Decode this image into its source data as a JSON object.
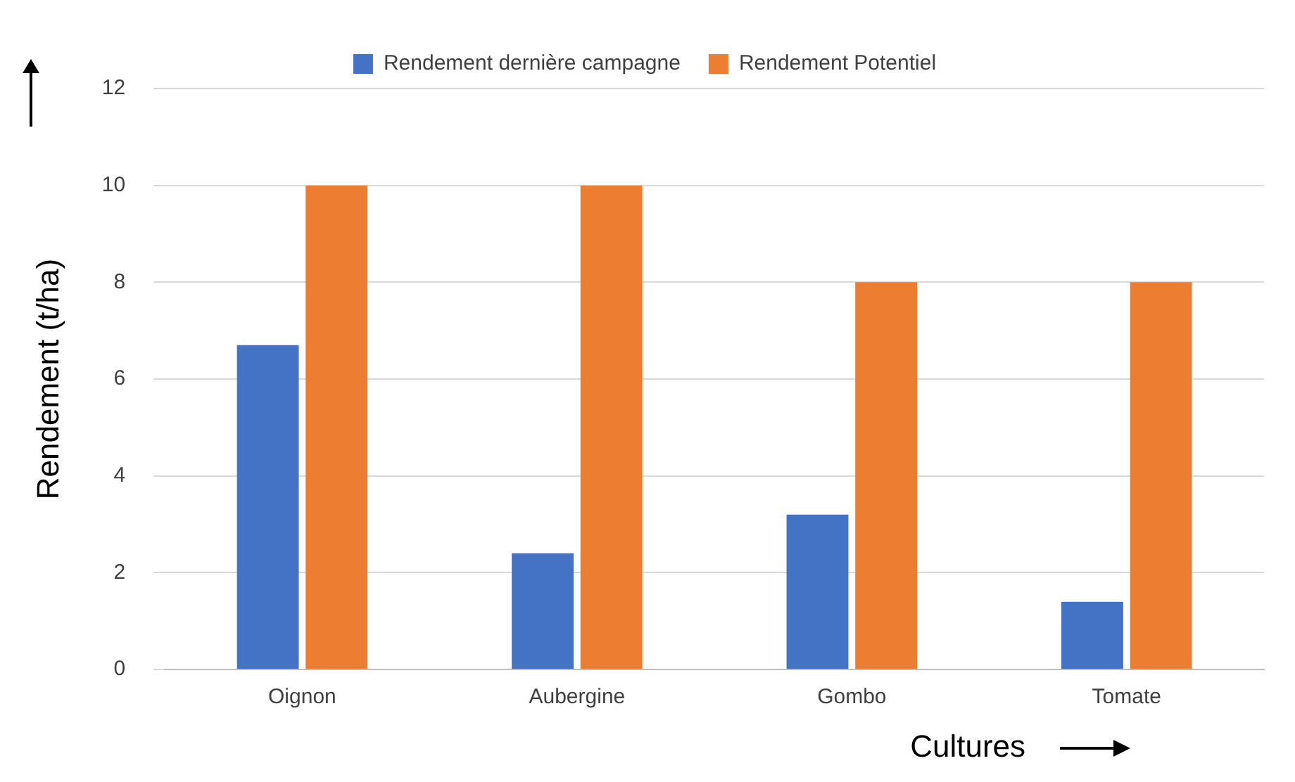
{
  "chart_data": {
    "type": "bar",
    "xlabel": "Cultures",
    "ylabel": "Rendement (t/ha)",
    "categories": [
      "Oignon",
      "Aubergine",
      "Gombo",
      "Tomate"
    ],
    "series": [
      {
        "name": "Rendement dernière campagne",
        "color": "#4472c4",
        "values": [
          6.7,
          2.4,
          3.2,
          1.4
        ]
      },
      {
        "name": "Rendement Potentiel",
        "color": "#ed7d31",
        "values": [
          10,
          10,
          8,
          8
        ]
      }
    ],
    "ylim": [
      0,
      12
    ],
    "yticks": [
      0,
      2,
      4,
      6,
      8,
      10,
      12
    ],
    "grid": "y",
    "legend": "top"
  }
}
